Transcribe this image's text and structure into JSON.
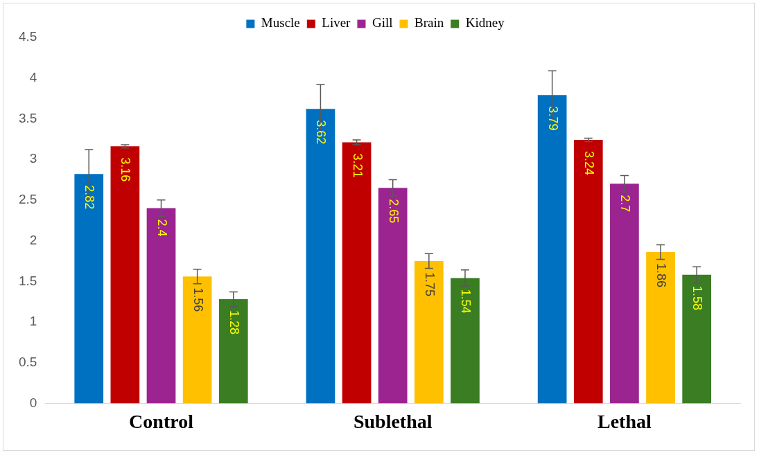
{
  "chart_data": {
    "type": "bar",
    "categories": [
      "Control",
      "Sublethal",
      "Lethal"
    ],
    "series": [
      {
        "name": "Muscle",
        "color": "#0070c0",
        "values": [
          2.82,
          3.62,
          3.79
        ],
        "errors": [
          0.3,
          0.3,
          0.3
        ]
      },
      {
        "name": "Liver",
        "color": "#c00000",
        "values": [
          3.16,
          3.21,
          3.24
        ],
        "errors": [
          0.02,
          0.03,
          0.02
        ]
      },
      {
        "name": "Gill",
        "color": "#9b2490",
        "values": [
          2.4,
          2.65,
          2.7
        ],
        "errors": [
          0.1,
          0.1,
          0.1
        ]
      },
      {
        "name": "Brain",
        "color": "#ffc000",
        "values": [
          1.56,
          1.75,
          1.86
        ],
        "errors": [
          0.09,
          0.09,
          0.09
        ]
      },
      {
        "name": "Kidney",
        "color": "#3a7d22",
        "values": [
          1.28,
          1.54,
          1.58
        ],
        "errors": [
          0.09,
          0.1,
          0.1
        ]
      }
    ],
    "ylim": [
      0,
      4.5
    ],
    "yticks": [
      0,
      0.5,
      1,
      1.5,
      2,
      2.5,
      3,
      3.5,
      4,
      4.5
    ],
    "grid": false,
    "legend": "top",
    "data_labels": true
  }
}
